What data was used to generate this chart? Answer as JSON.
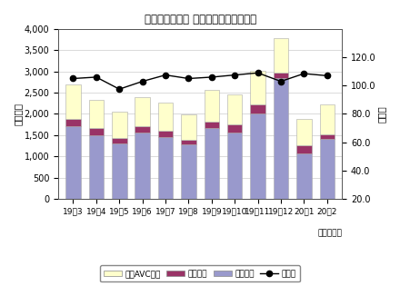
{
  "title": "民生用電子機器 国内出荷実績（金額）",
  "xlabel_unit": "（年・月）",
  "ylabel_left": "（億円）",
  "ylabel_right": "（％）",
  "categories": [
    "19・3",
    "19・4",
    "19・5",
    "19・6",
    "19・7",
    "19・8",
    "19・9",
    "19・10",
    "19・11",
    "19・12",
    "20・1",
    "20・2"
  ],
  "eizo": [
    1700,
    1500,
    1300,
    1560,
    1460,
    1280,
    1660,
    1570,
    2020,
    2840,
    1060,
    1410
  ],
  "onsei": [
    185,
    168,
    128,
    148,
    138,
    118,
    168,
    178,
    195,
    128,
    195,
    118
  ],
  "car_avc": [
    815,
    655,
    618,
    695,
    658,
    588,
    738,
    718,
    795,
    825,
    618,
    705
  ],
  "yoy": [
    105.0,
    106.0,
    97.5,
    103.0,
    107.5,
    105.0,
    106.0,
    107.5,
    109.0,
    103.0,
    108.5,
    107.0
  ],
  "bar_color_eizo": "#9999cc",
  "bar_color_onsei": "#993366",
  "bar_color_car": "#ffffcc",
  "line_color": "#000000",
  "ylim_left": [
    0,
    4000
  ],
  "ylim_right": [
    20,
    140
  ],
  "yticks_left": [
    0,
    500,
    1000,
    1500,
    2000,
    2500,
    3000,
    3500,
    4000
  ],
  "yticks_right": [
    20.0,
    40.0,
    60.0,
    80.0,
    100.0,
    120.0
  ],
  "legend_labels": [
    "カーAVC機器",
    "音声機器",
    "映像機器",
    "前年比"
  ],
  "background_color": "#ffffff"
}
